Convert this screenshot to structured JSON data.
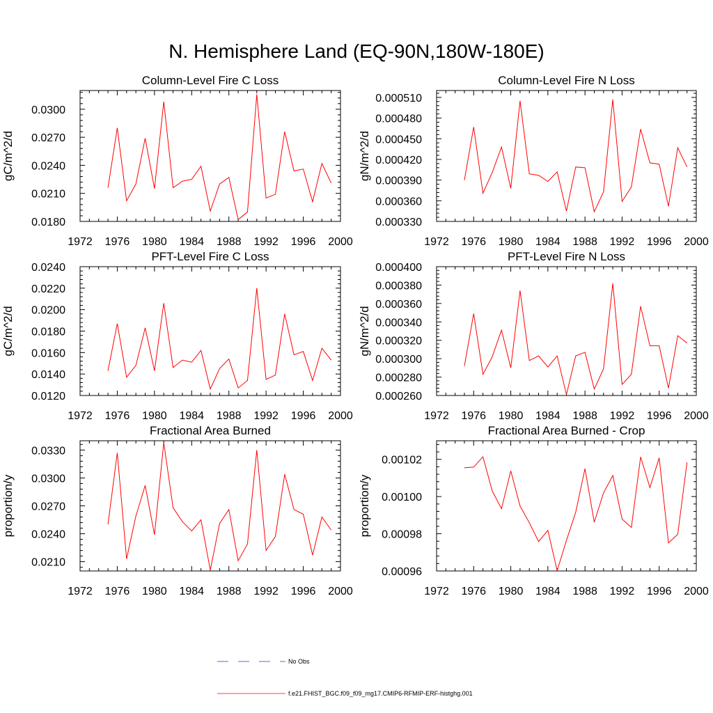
{
  "title": "N. Hemisphere Land (EQ-90N,180W-180E)",
  "colors": {
    "series": "#ff0000",
    "obs": "#3333cc",
    "axis": "#000000",
    "background": "#ffffff"
  },
  "legend": {
    "obs_label": "No Obs",
    "model_label": "f.e21.FHIST_BGC.f09_f09_mg17.CMIP6-RFMIP-ERF-histghg.001"
  },
  "chart_data": [
    {
      "type": "line",
      "title": "Column-Level Fire C Loss",
      "xlabel": "",
      "ylabel": "gC/m^2/d",
      "xlim": [
        1972,
        2000
      ],
      "ylim": [
        0.018,
        0.032
      ],
      "xticks": [
        1972,
        1976,
        1980,
        1984,
        1988,
        1992,
        1996,
        2000
      ],
      "xtick_labels": [
        "1972",
        "1976",
        "1980",
        "1984",
        "1988",
        "1992",
        "1996",
        "2000"
      ],
      "yticks": [
        0.018,
        0.021,
        0.024,
        0.027,
        0.03
      ],
      "ytick_labels": [
        "0.0180",
        "0.0210",
        "0.0240",
        "0.0270",
        "0.0300"
      ],
      "grid": false,
      "series": [
        {
          "name": "f.e21.FHIST_BGC.f09_f09_mg17.CMIP6-RFMIP-ERF-histghg.001",
          "x": [
            1975,
            1976,
            1977,
            1978,
            1979,
            1980,
            1981,
            1982,
            1983,
            1984,
            1985,
            1986,
            1987,
            1988,
            1989,
            1990,
            1991,
            1992,
            1993,
            1994,
            1995,
            1996,
            1997,
            1998,
            1999
          ],
          "values": [
            0.0216,
            0.028,
            0.0202,
            0.022,
            0.0269,
            0.0215,
            0.0308,
            0.0216,
            0.0223,
            0.0225,
            0.0239,
            0.0191,
            0.022,
            0.0227,
            0.0182,
            0.019,
            0.0316,
            0.0205,
            0.0209,
            0.0276,
            0.0234,
            0.0236,
            0.0201,
            0.0242,
            0.0221
          ]
        }
      ]
    },
    {
      "type": "line",
      "title": "Column-Level Fire N Loss",
      "xlabel": "",
      "ylabel": "gN/m^2/d",
      "xlim": [
        1972,
        2000
      ],
      "ylim": [
        0.00033,
        0.00052
      ],
      "xticks": [
        1972,
        1976,
        1980,
        1984,
        1988,
        1992,
        1996,
        2000
      ],
      "xtick_labels": [
        "1972",
        "1976",
        "1980",
        "1984",
        "1988",
        "1992",
        "1996",
        "2000"
      ],
      "yticks": [
        0.00033,
        0.00036,
        0.00039,
        0.00042,
        0.00045,
        0.00048,
        0.00051
      ],
      "ytick_labels": [
        "0.000330",
        "0.000360",
        "0.000390",
        "0.000420",
        "0.000450",
        "0.000480",
        "0.000510"
      ],
      "grid": false,
      "series": [
        {
          "name": "f.e21.FHIST_BGC.f09_f09_mg17.CMIP6-RFMIP-ERF-histghg.001",
          "x": [
            1975,
            1976,
            1977,
            1978,
            1979,
            1980,
            1981,
            1982,
            1983,
            1984,
            1985,
            1986,
            1987,
            1988,
            1989,
            1990,
            1991,
            1992,
            1993,
            1994,
            1995,
            1996,
            1997,
            1998,
            1999
          ],
          "values": [
            0.00039,
            0.000467,
            0.000371,
            0.000401,
            0.000438,
            0.000378,
            0.000505,
            0.000399,
            0.000397,
            0.000388,
            0.000402,
            0.000345,
            0.000409,
            0.000408,
            0.000344,
            0.000373,
            0.000507,
            0.000359,
            0.00038,
            0.000464,
            0.000415,
            0.000413,
            0.000352,
            0.000437,
            0.000409
          ]
        }
      ]
    },
    {
      "type": "line",
      "title": "PFT-Level Fire C Loss",
      "xlabel": "",
      "ylabel": "gC/m^2/d",
      "xlim": [
        1972,
        2000
      ],
      "ylim": [
        0.012,
        0.024
      ],
      "xticks": [
        1972,
        1976,
        1980,
        1984,
        1988,
        1992,
        1996,
        2000
      ],
      "xtick_labels": [
        "1972",
        "1976",
        "1980",
        "1984",
        "1988",
        "1992",
        "1996",
        "2000"
      ],
      "yticks": [
        0.012,
        0.014,
        0.016,
        0.018,
        0.02,
        0.022,
        0.024
      ],
      "ytick_labels": [
        "0.0120",
        "0.0140",
        "0.0160",
        "0.0180",
        "0.0200",
        "0.0220",
        "0.0240"
      ],
      "grid": false,
      "series": [
        {
          "name": "f.e21.FHIST_BGC.f09_f09_mg17.CMIP6-RFMIP-ERF-histghg.001",
          "x": [
            1975,
            1976,
            1977,
            1978,
            1979,
            1980,
            1981,
            1982,
            1983,
            1984,
            1985,
            1986,
            1987,
            1988,
            1989,
            1990,
            1991,
            1992,
            1993,
            1994,
            1995,
            1996,
            1997,
            1998,
            1999
          ],
          "values": [
            0.0143,
            0.0187,
            0.0137,
            0.0148,
            0.0183,
            0.0143,
            0.0206,
            0.0146,
            0.0153,
            0.0151,
            0.0162,
            0.0126,
            0.0145,
            0.0154,
            0.0127,
            0.0134,
            0.022,
            0.0135,
            0.0139,
            0.0196,
            0.0158,
            0.0161,
            0.0134,
            0.0164,
            0.0153
          ]
        }
      ]
    },
    {
      "type": "line",
      "title": "PFT-Level Fire N Loss",
      "xlabel": "",
      "ylabel": "gN/m^2/d",
      "xlim": [
        1972,
        2000
      ],
      "ylim": [
        0.00026,
        0.0004
      ],
      "xticks": [
        1972,
        1976,
        1980,
        1984,
        1988,
        1992,
        1996,
        2000
      ],
      "xtick_labels": [
        "1972",
        "1976",
        "1980",
        "1984",
        "1988",
        "1992",
        "1996",
        "2000"
      ],
      "yticks": [
        0.00026,
        0.00028,
        0.0003,
        0.00032,
        0.00034,
        0.00036,
        0.00038,
        0.0004
      ],
      "ytick_labels": [
        "0.000260",
        "0.000280",
        "0.000300",
        "0.000320",
        "0.000340",
        "0.000360",
        "0.000380",
        "0.000400"
      ],
      "grid": false,
      "series": [
        {
          "name": "f.e21.FHIST_BGC.f09_f09_mg17.CMIP6-RFMIP-ERF-histghg.001",
          "x": [
            1975,
            1976,
            1977,
            1978,
            1979,
            1980,
            1981,
            1982,
            1983,
            1984,
            1985,
            1986,
            1987,
            1988,
            1989,
            1990,
            1991,
            1992,
            1993,
            1994,
            1995,
            1996,
            1997,
            1998,
            1999
          ],
          "values": [
            0.000292,
            0.000349,
            0.000283,
            0.000302,
            0.000331,
            0.00029,
            0.000374,
            0.000298,
            0.000303,
            0.000291,
            0.000303,
            0.000261,
            0.000303,
            0.000307,
            0.000267,
            0.000289,
            0.000382,
            0.000272,
            0.000283,
            0.000357,
            0.000314,
            0.000314,
            0.000268,
            0.000325,
            0.000317
          ]
        }
      ]
    },
    {
      "type": "line",
      "title": "Fractional Area Burned",
      "xlabel": "",
      "ylabel": "proportion/y",
      "xlim": [
        1972,
        2000
      ],
      "ylim": [
        0.02,
        0.034
      ],
      "xticks": [
        1972,
        1976,
        1980,
        1984,
        1988,
        1992,
        1996,
        2000
      ],
      "xtick_labels": [
        "1972",
        "1976",
        "1980",
        "1984",
        "1988",
        "1992",
        "1996",
        "2000"
      ],
      "yticks": [
        0.021,
        0.024,
        0.027,
        0.03,
        0.033
      ],
      "ytick_labels": [
        "0.0210",
        "0.0240",
        "0.0270",
        "0.0300",
        "0.0330"
      ],
      "grid": false,
      "series": [
        {
          "name": "f.e21.FHIST_BGC.f09_f09_mg17.CMIP6-RFMIP-ERF-histghg.001",
          "x": [
            1975,
            1976,
            1977,
            1978,
            1979,
            1980,
            1981,
            1982,
            1983,
            1984,
            1985,
            1986,
            1987,
            1988,
            1989,
            1990,
            1991,
            1992,
            1993,
            1994,
            1995,
            1996,
            1997,
            1998,
            1999
          ],
          "values": [
            0.025,
            0.0327,
            0.0213,
            0.0259,
            0.0292,
            0.0239,
            0.0338,
            0.0268,
            0.0253,
            0.0243,
            0.0255,
            0.0201,
            0.0251,
            0.0266,
            0.0211,
            0.0229,
            0.033,
            0.0222,
            0.0237,
            0.0304,
            0.0266,
            0.0261,
            0.0217,
            0.0258,
            0.0244
          ]
        }
      ]
    },
    {
      "type": "line",
      "title": "Fractional Area Burned - Crop",
      "xlabel": "",
      "ylabel": "proportion/y",
      "xlim": [
        1972,
        2000
      ],
      "ylim": [
        0.00096,
        0.00103
      ],
      "xticks": [
        1972,
        1976,
        1980,
        1984,
        1988,
        1992,
        1996,
        2000
      ],
      "xtick_labels": [
        "1972",
        "1976",
        "1980",
        "1984",
        "1988",
        "1992",
        "1996",
        "2000"
      ],
      "yticks": [
        0.00096,
        0.00098,
        0.001,
        0.00102
      ],
      "ytick_labels": [
        "0.00096",
        "0.00098",
        "0.00100",
        "0.00102"
      ],
      "grid": false,
      "series": [
        {
          "name": "f.e21.FHIST_BGC.f09_f09_mg17.CMIP6-RFMIP-ERF-histghg.001",
          "x": [
            1975,
            1976,
            1977,
            1978,
            1979,
            1980,
            1981,
            1982,
            1983,
            1984,
            1985,
            1986,
            1987,
            1988,
            1989,
            1990,
            1991,
            1992,
            1993,
            1994,
            1995,
            1996,
            1997,
            1998,
            1999
          ],
          "values": [
            0.0010155,
            0.0010158,
            0.0010214,
            0.001003,
            0.0009935,
            0.0010138,
            0.0009949,
            0.0009859,
            0.0009758,
            0.0009818,
            0.0009602,
            0.0009764,
            0.0009916,
            0.001015,
            0.0009862,
            0.001002,
            0.0010113,
            0.0009879,
            0.0009834,
            0.0010213,
            0.0010048,
            0.0010208,
            0.0009751,
            0.0009797,
            0.0010184
          ]
        }
      ]
    }
  ]
}
